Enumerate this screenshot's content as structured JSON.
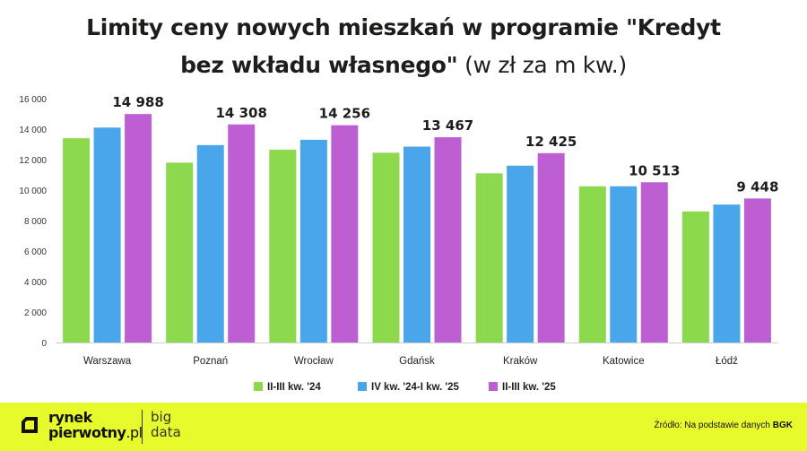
{
  "title": {
    "line1": "Limity ceny nowych mieszkań w programie \"Kredyt",
    "line2_bold": "bez wkładu własnego\"",
    "line2_light": " (w zł za m kw.)"
  },
  "chart_data": {
    "type": "bar",
    "title": "Limity ceny nowych mieszkań w programie \"Kredyt bez wkładu własnego\" (w zł za m kw.)",
    "categories": [
      "Warszawa",
      "Poznań",
      "Wrocław",
      "Gdańsk",
      "Kraków",
      "Katowice",
      "Łódź"
    ],
    "series": [
      {
        "name": "II-III kw. '24",
        "color": "#8cd94e",
        "values": [
          13400,
          11800,
          12650,
          12450,
          11100,
          10250,
          8600
        ]
      },
      {
        "name": "IV kw. '24-I kw. '25",
        "color": "#4aa6ea",
        "values": [
          14100,
          12950,
          13300,
          12850,
          11600,
          10250,
          9050
        ]
      },
      {
        "name": "II-III kw. '25",
        "color": "#bd5fd3",
        "values": [
          14988,
          14308,
          14256,
          13467,
          12425,
          10513,
          9448
        ]
      }
    ],
    "data_labels": [
      "14 988",
      "14 308",
      "14 256",
      "13 467",
      "12 425",
      "10 513",
      "9 448"
    ],
    "yticks": [
      "0",
      "2 000",
      "4 000",
      "6 000",
      "8 000",
      "10 000",
      "12 000",
      "14 000",
      "16 000"
    ],
    "ylim": [
      0,
      16000
    ],
    "grid": false,
    "legend_position": "bottom-center",
    "xlabel": "",
    "ylabel": ""
  },
  "footer": {
    "logo_line1": "rynek",
    "logo_line2_main": "pierwotny",
    "logo_line2_suffix": ".pl",
    "brand_line1": "big",
    "brand_line2": "data",
    "source_prefix": "Źródło: Na podstawie danych ",
    "source_bold": "BGK",
    "background_color": "#e7fb2c"
  }
}
